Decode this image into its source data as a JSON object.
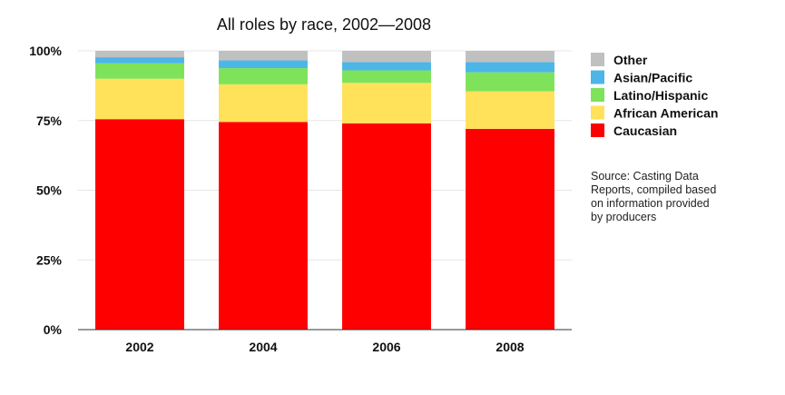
{
  "chart_data": {
    "type": "bar",
    "stacked": true,
    "title": "All roles by race, 2002—2008",
    "xlabel": "",
    "ylabel": "",
    "categories": [
      "2002",
      "2004",
      "2006",
      "2008"
    ],
    "yticks": [
      "0%",
      "25%",
      "50%",
      "75%",
      "100%"
    ],
    "ylim": [
      0,
      100
    ],
    "grid": true,
    "legend_position": "right",
    "series": [
      {
        "name": "Caucasian",
        "color": "#ff0000",
        "values": [
          75.5,
          74.5,
          74.0,
          72.0
        ]
      },
      {
        "name": "African American",
        "color": "#ffe15a",
        "values": [
          14.5,
          13.5,
          14.5,
          13.5
        ]
      },
      {
        "name": "Latino/Hispanic",
        "color": "#7ee35a",
        "values": [
          5.5,
          5.8,
          4.5,
          6.8
        ]
      },
      {
        "name": "Asian/Pacific",
        "color": "#4db6e6",
        "values": [
          2.2,
          2.8,
          3.0,
          3.7
        ]
      },
      {
        "name": "Other",
        "color": "#c0c0c0",
        "values": [
          2.3,
          3.4,
          4.0,
          4.0
        ]
      }
    ],
    "legend_order": [
      "Other",
      "Asian/Pacific",
      "Latino/Hispanic",
      "African American",
      "Caucasian"
    ],
    "source_lines": [
      "Source: Casting Data",
      "Reports, compiled based",
      "on information provided",
      "by producers"
    ]
  }
}
